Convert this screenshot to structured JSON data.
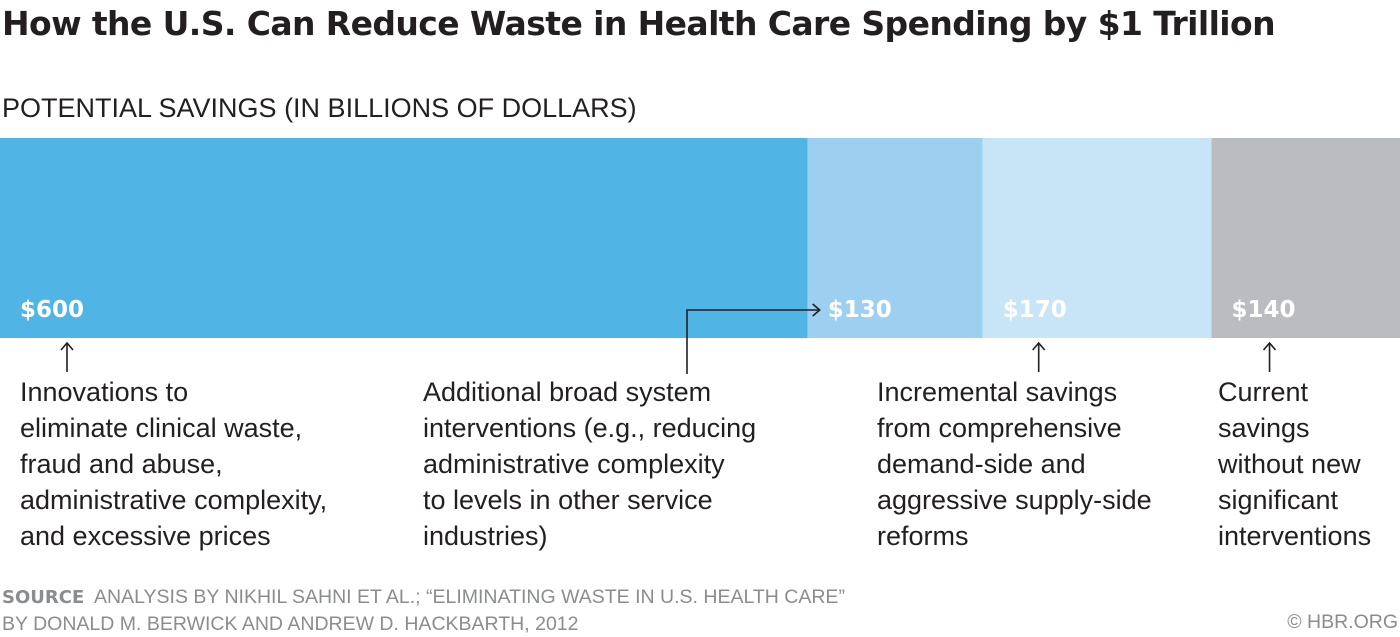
{
  "chart_data": {
    "type": "bar",
    "orientation": "stacked-horizontal",
    "title": "How the U.S. Can Reduce Waste in Health Care Spending by $1 Trillion",
    "subtitle": "POTENTIAL SAVINGS (IN BILLIONS OF DOLLARS)",
    "categories": [
      "Innovations to eliminate clinical waste, fraud and abuse, administrative complexity, and excessive prices",
      "Additional broad system interventions (e.g., reducing administrative complexity to levels in other service industries)",
      "Incremental savings from comprehensive demand-side and aggressive supply-side reforms",
      "Current savings without new significant interventions"
    ],
    "values": [
      600,
      130,
      170,
      140
    ],
    "value_labels": [
      "$600",
      "$130",
      "$170",
      "$140"
    ],
    "colors": [
      "#50b4e5",
      "#9dd0f0",
      "#c8e4f7",
      "#bbbcbf"
    ],
    "annotations": [
      [
        "Innovations to",
        "eliminate clinical waste,",
        "fraud and abuse,",
        "administrative complexity,",
        "and excessive prices"
      ],
      [
        "Additional broad system",
        "interventions (e.g., reducing",
        "administrative complexity",
        "to levels in other service",
        "industries)"
      ],
      [
        "Incremental savings",
        "from comprehensive",
        "demand-side and",
        "aggressive supply-side",
        "reforms"
      ],
      [
        "Current",
        "savings",
        "without new",
        "significant",
        "interventions"
      ]
    ],
    "xlim": [
      0,
      1040
    ],
    "grid": false,
    "legend": "none"
  },
  "source": {
    "label": "SOURCE",
    "line1": "ANALYSIS BY NIKHIL SAHNI ET AL.; “ELIMINATING WASTE IN U.S. HEALTH CARE”",
    "line2": "BY DONALD M. BERWICK AND ANDREW D. HACKBARTH, 2012"
  },
  "credit": "© HBR.ORG"
}
